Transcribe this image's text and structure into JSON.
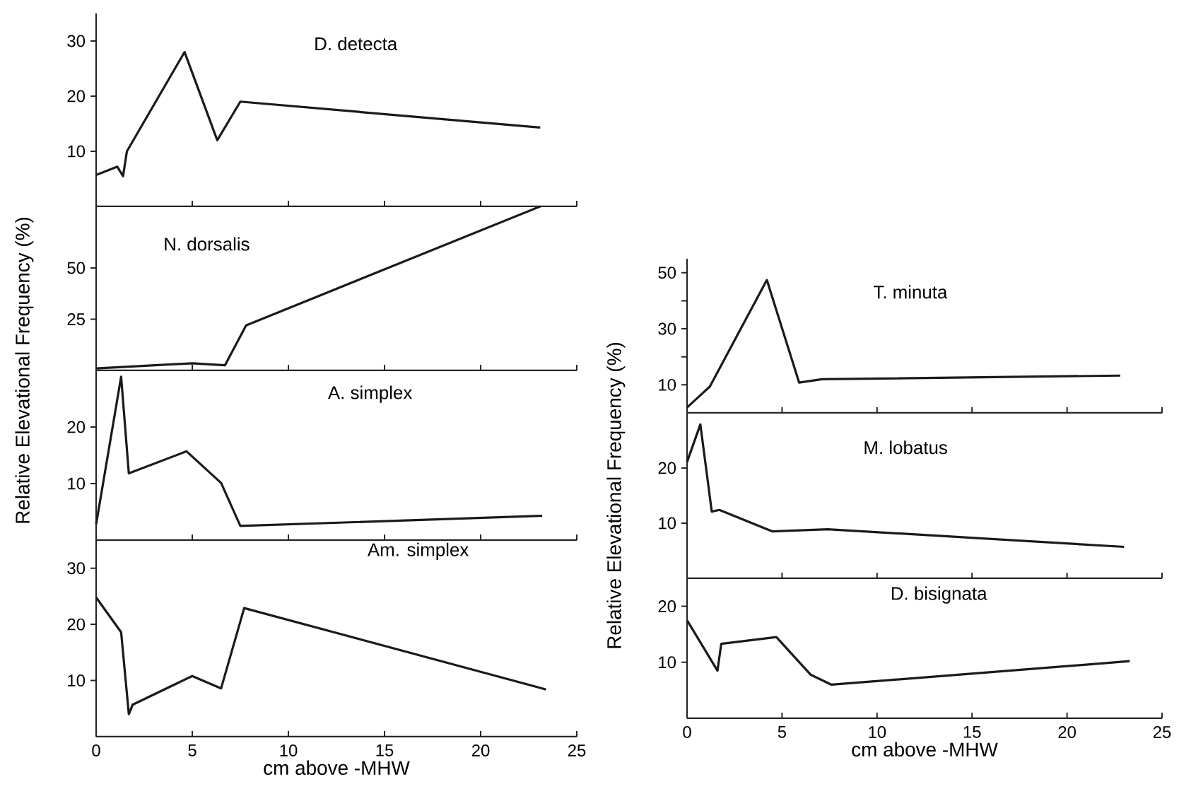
{
  "chart_data": [
    {
      "type": "line",
      "title": "D. detecta",
      "x": [
        0,
        1.1,
        1.4,
        1.6,
        4.6,
        6.3,
        7.5,
        23.1
      ],
      "series": [
        {
          "color": "#1a1a1a",
          "values": [
            5.7,
            7.2,
            5.5,
            10,
            28,
            12,
            19,
            14.3
          ]
        }
      ],
      "xlim": [
        0,
        25
      ],
      "xticks": [
        {
          "value": 0,
          "label": null
        },
        {
          "value": 5,
          "label": null
        },
        {
          "value": 10,
          "label": null
        },
        {
          "value": 15,
          "label": null
        },
        {
          "value": 20,
          "label": null
        },
        {
          "value": 25,
          "label": null
        }
      ],
      "ylim": [
        0,
        35
      ],
      "yticks": [
        10,
        20,
        30
      ],
      "tick_labels": "y"
    },
    {
      "type": "line",
      "title": "N. dorsalis",
      "ylabel": "Relative Elevational Frequency (%)",
      "x": [
        0,
        5,
        6.7,
        7.8,
        23.1
      ],
      "series": [
        {
          "color": "#1a1a1a",
          "values": [
            1,
            3.5,
            2.5,
            22,
            80
          ]
        }
      ],
      "xlim": [
        0,
        25
      ],
      "xticks": [
        {
          "value": 0,
          "label": null
        },
        {
          "value": 5,
          "label": null
        },
        {
          "value": 10,
          "label": null
        },
        {
          "value": 15,
          "label": null
        },
        {
          "value": 20,
          "label": null
        },
        {
          "value": 25,
          "label": null
        }
      ],
      "ylim": [
        0,
        80
      ],
      "yticks": [
        25,
        50
      ],
      "tick_labels": "y"
    },
    {
      "type": "line",
      "title": "A. simplex",
      "x": [
        0,
        1.3,
        1.7,
        4.7,
        6.5,
        7.5,
        23.2
      ],
      "series": [
        {
          "color": "#1a1a1a",
          "values": [
            2.8,
            28.9,
            11.8,
            15.7,
            10.1,
            2.5,
            4.3
          ]
        }
      ],
      "xlim": [
        0,
        25
      ],
      "xticks": [
        {
          "value": 0,
          "label": null
        },
        {
          "value": 5,
          "label": null
        },
        {
          "value": 10,
          "label": null
        },
        {
          "value": 15,
          "label": null
        },
        {
          "value": 20,
          "label": null
        },
        {
          "value": 25,
          "label": null
        }
      ],
      "ylim": [
        0,
        30
      ],
      "yticks": [
        10,
        20
      ],
      "tick_labels": "y"
    },
    {
      "type": "line",
      "title": "Am. simplex",
      "xlabel": "cm above -MHW",
      "x": [
        0,
        1.3,
        1.7,
        1.9,
        5,
        6.5,
        7.7,
        23.4
      ],
      "series": [
        {
          "color": "#1a1a1a",
          "values": [
            24.8,
            18.6,
            4,
            5.7,
            10.8,
            8.6,
            22.9,
            8.4
          ]
        }
      ],
      "xlim": [
        0,
        25
      ],
      "xticks": [
        0,
        5,
        10,
        15,
        20,
        25
      ],
      "ylim": [
        0,
        35
      ],
      "yticks": [
        10,
        20,
        30
      ]
    },
    {
      "type": "line",
      "title": "T. minuta",
      "x": [
        0,
        0.8,
        1.2,
        4.2,
        5.9,
        7.1,
        22.8
      ],
      "series": [
        {
          "color": "#1a1a1a",
          "values": [
            1.9,
            6.9,
            9.4,
            47.4,
            10.8,
            12,
            13.3
          ]
        }
      ],
      "xlim": [
        0,
        25
      ],
      "xticks": [
        {
          "value": 0,
          "label": null
        },
        {
          "value": 5,
          "label": null
        },
        {
          "value": 10,
          "label": null
        },
        {
          "value": 15,
          "label": null
        },
        {
          "value": 20,
          "label": null
        },
        {
          "value": 25,
          "label": null
        }
      ],
      "ylim": [
        0,
        55
      ],
      "yticks": [
        10,
        {
          "value": 20,
          "label": null
        },
        30,
        {
          "value": 40,
          "label": null
        },
        50
      ],
      "tick_labels": "y"
    },
    {
      "type": "line",
      "title": "M. lobatus",
      "ylabel": "Relative Elevational Frequency (%)",
      "x": [
        0,
        0.7,
        1.3,
        1.7,
        4.5,
        7.4,
        23
      ],
      "series": [
        {
          "color": "#1a1a1a",
          "values": [
            21.1,
            27.9,
            12.1,
            12.4,
            8.5,
            8.9,
            5.7
          ]
        }
      ],
      "xlim": [
        0,
        25
      ],
      "xticks": [
        {
          "value": 0,
          "label": null
        },
        {
          "value": 5,
          "label": null
        },
        {
          "value": 10,
          "label": null
        },
        {
          "value": 15,
          "label": null
        },
        {
          "value": 20,
          "label": null
        },
        {
          "value": 25,
          "label": null
        }
      ],
      "ylim": [
        0,
        30
      ],
      "yticks": [
        10,
        20
      ],
      "tick_labels": "y"
    },
    {
      "type": "line",
      "title": "D. bisignata",
      "xlabel": "cm above -MHW",
      "x": [
        0,
        1.6,
        1.8,
        4.7,
        6.5,
        7.6,
        23.3
      ],
      "series": [
        {
          "color": "#1a1a1a",
          "values": [
            17.5,
            8.5,
            13.3,
            14.5,
            7.8,
            6,
            10.2
          ]
        }
      ],
      "xlim": [
        0,
        25
      ],
      "xticks": [
        0,
        5,
        10,
        15,
        20,
        25
      ],
      "ylim": [
        0,
        25
      ],
      "yticks": [
        10,
        20
      ]
    }
  ]
}
